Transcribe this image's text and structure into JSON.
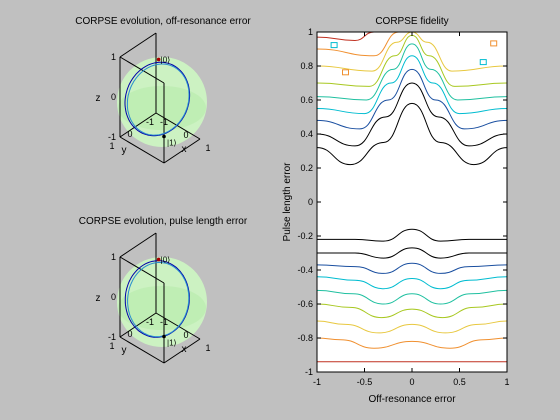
{
  "chart_data": [
    {
      "type": "3d-line",
      "title": "CORPSE evolution, off-resonance error",
      "xlabel": "x",
      "ylabel": "y",
      "zlabel": "z",
      "xlim": [
        -1,
        1
      ],
      "ylim": [
        -1,
        1
      ],
      "zlim": [
        -1,
        1
      ],
      "x_ticks": [
        "-1",
        "0",
        "1"
      ],
      "y_ticks": [
        "-1",
        "0",
        "1"
      ],
      "z_ticks": [
        "-1",
        "0",
        "1"
      ],
      "annotations": [
        "|0⟩",
        "|1⟩"
      ],
      "sphere_color": "#ccf2c2",
      "line_colors": [
        "#0000aa",
        "#2a8fcf"
      ],
      "tilt": 0.32
    },
    {
      "type": "3d-line",
      "title": "CORPSE evolution, pulse length error",
      "xlabel": "x",
      "ylabel": "y",
      "zlabel": "z",
      "xlim": [
        -1,
        1
      ],
      "ylim": [
        -1,
        1
      ],
      "zlim": [
        -1,
        1
      ],
      "x_ticks": [
        "-1",
        "0",
        "1"
      ],
      "y_ticks": [
        "-1",
        "0",
        "1"
      ],
      "z_ticks": [
        "-1",
        "0",
        "1"
      ],
      "annotations": [
        "|0⟩",
        "|1⟩"
      ],
      "sphere_color": "#ccf2c2",
      "line_colors": [
        "#0000aa",
        "#2a8fcf"
      ],
      "tilt": 0.12
    },
    {
      "type": "contour",
      "title": "CORPSE fidelity",
      "xlabel": "Off-resonance error",
      "ylabel": "Pulse length error",
      "xlim": [
        -1,
        1
      ],
      "ylim": [
        -1,
        1
      ],
      "x_ticks": [
        "-1",
        "-0.5",
        "0",
        "0.5",
        "1"
      ],
      "y_ticks": [
        "-1",
        "-0.8",
        "-0.6",
        "-0.4",
        "-0.2",
        "0",
        "0.2",
        "0.4",
        "0.6",
        "0.8",
        "1"
      ],
      "colormap": "jet",
      "levels": [
        {
          "color": "#000000",
          "upper": [
            [
              -1,
              0.32
            ],
            [
              -0.65,
              0.22
            ],
            [
              -0.3,
              0.35
            ],
            [
              0,
              0.58
            ],
            [
              0.3,
              0.35
            ],
            [
              0.65,
              0.22
            ],
            [
              1,
              0.32
            ]
          ],
          "lower": [
            [
              -1,
              -0.22
            ],
            [
              -0.6,
              -0.22
            ],
            [
              -0.3,
              -0.23
            ],
            [
              0,
              -0.16
            ],
            [
              0.3,
              -0.23
            ],
            [
              0.6,
              -0.22
            ],
            [
              1,
              -0.22
            ]
          ]
        },
        {
          "color": "#000000",
          "upper": [
            [
              -1,
              0.4
            ],
            [
              -0.6,
              0.33
            ],
            [
              -0.28,
              0.5
            ],
            [
              0,
              0.7
            ],
            [
              0.28,
              0.5
            ],
            [
              0.6,
              0.33
            ],
            [
              1,
              0.4
            ]
          ],
          "lower": [
            [
              -1,
              -0.3
            ],
            [
              -0.6,
              -0.3
            ],
            [
              -0.3,
              -0.33
            ],
            [
              0,
              -0.27
            ],
            [
              0.3,
              -0.33
            ],
            [
              0.6,
              -0.3
            ],
            [
              1,
              -0.3
            ]
          ]
        },
        {
          "color": "#1a4fa0",
          "upper": [
            [
              -1,
              0.48
            ],
            [
              -0.55,
              0.43
            ],
            [
              -0.25,
              0.6
            ],
            [
              0,
              0.78
            ],
            [
              0.25,
              0.6
            ],
            [
              0.55,
              0.43
            ],
            [
              1,
              0.48
            ]
          ],
          "lower": [
            [
              -1,
              -0.37
            ],
            [
              -0.6,
              -0.38
            ],
            [
              -0.3,
              -0.42
            ],
            [
              0,
              -0.36
            ],
            [
              0.3,
              -0.42
            ],
            [
              0.6,
              -0.38
            ],
            [
              1,
              -0.37
            ]
          ]
        },
        {
          "color": "#00bcd0",
          "upper": [
            [
              -1,
              0.55
            ],
            [
              -0.5,
              0.52
            ],
            [
              -0.22,
              0.7
            ],
            [
              0,
              0.86
            ],
            [
              0.22,
              0.7
            ],
            [
              0.5,
              0.52
            ],
            [
              1,
              0.55
            ]
          ],
          "lower": [
            [
              -1,
              -0.44
            ],
            [
              -0.6,
              -0.46
            ],
            [
              -0.3,
              -0.51
            ],
            [
              0,
              -0.45
            ],
            [
              0.3,
              -0.51
            ],
            [
              0.6,
              -0.46
            ],
            [
              1,
              -0.44
            ]
          ]
        },
        {
          "color": "#20c0a0",
          "upper": [
            [
              -1,
              0.62
            ],
            [
              -0.48,
              0.6
            ],
            [
              -0.2,
              0.78
            ],
            [
              0,
              0.93
            ],
            [
              0.2,
              0.78
            ],
            [
              0.48,
              0.6
            ],
            [
              1,
              0.62
            ]
          ],
          "lower": [
            [
              -1,
              -0.52
            ],
            [
              -0.62,
              -0.54
            ],
            [
              -0.3,
              -0.6
            ],
            [
              0,
              -0.54
            ],
            [
              0.3,
              -0.6
            ],
            [
              0.62,
              -0.54
            ],
            [
              1,
              -0.52
            ]
          ]
        },
        {
          "color": "#a8c820",
          "upper": [
            [
              -1,
              0.7
            ],
            [
              -0.45,
              0.68
            ],
            [
              -0.18,
              0.86
            ],
            [
              0,
              0.98
            ],
            [
              0.18,
              0.86
            ],
            [
              0.45,
              0.68
            ],
            [
              1,
              0.7
            ]
          ],
          "lower": [
            [
              -1,
              -0.6
            ],
            [
              -0.65,
              -0.62
            ],
            [
              -0.32,
              -0.68
            ],
            [
              0,
              -0.63
            ],
            [
              0.32,
              -0.68
            ],
            [
              0.65,
              -0.62
            ],
            [
              1,
              -0.6
            ]
          ]
        },
        {
          "color": "#e8c840",
          "upper": [
            [
              -1,
              0.8
            ],
            [
              -0.42,
              0.77
            ],
            [
              -0.16,
              0.94
            ],
            [
              0,
              1.0
            ],
            [
              0.16,
              0.94
            ],
            [
              0.42,
              0.77
            ],
            [
              1,
              0.8
            ]
          ],
          "lower": [
            [
              -1,
              -0.7
            ],
            [
              -0.7,
              -0.72
            ],
            [
              -0.35,
              -0.77
            ],
            [
              0,
              -0.72
            ],
            [
              0.35,
              -0.77
            ],
            [
              0.7,
              -0.72
            ],
            [
              1,
              -0.7
            ]
          ]
        },
        {
          "color": "#f09030",
          "upper": [
            [
              -1,
              0.9
            ],
            [
              -0.4,
              0.86
            ],
            [
              -0.14,
              1.0
            ]
          ],
          "lower": [
            [
              -1,
              -0.8
            ],
            [
              -0.75,
              -0.81
            ],
            [
              -0.4,
              -0.86
            ],
            [
              0,
              -0.82
            ],
            [
              0.4,
              -0.86
            ],
            [
              0.75,
              -0.81
            ],
            [
              1,
              -0.8
            ]
          ]
        },
        {
          "color": "#c03020",
          "upper": [
            [
              -1,
              0.97
            ],
            [
              -0.6,
              0.95
            ],
            [
              -0.4,
              1.0
            ]
          ],
          "lower": [
            [
              -1,
              -0.94
            ],
            [
              -0.5,
              -0.94
            ],
            [
              0,
              -0.94
            ],
            [
              0.5,
              -0.94
            ],
            [
              1,
              -0.94
            ]
          ]
        }
      ]
    }
  ]
}
